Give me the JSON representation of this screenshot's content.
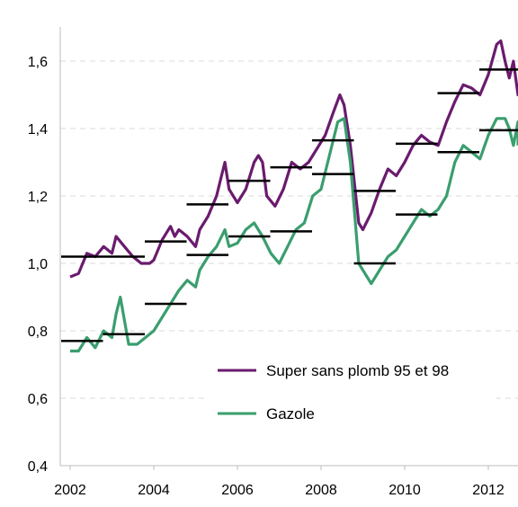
{
  "chart_data": {
    "type": "line",
    "title": "",
    "xlabel": "",
    "ylabel": "",
    "xlim": [
      2002,
      2013.1
    ],
    "ylim": [
      0.4,
      1.7
    ],
    "x_ticks": [
      2002,
      2004,
      2006,
      2008,
      2010,
      2012
    ],
    "x_tick_labels": [
      "2002",
      "2004",
      "2006",
      "2008",
      "2010",
      "2012"
    ],
    "y_ticks": [
      0.4,
      0.6,
      0.8,
      1.0,
      1.2,
      1.4,
      1.6
    ],
    "y_tick_labels": [
      "0,4",
      "0,6",
      "0,8",
      "1,0",
      "1,2",
      "1,4",
      "1,6"
    ],
    "grid": "horizontal dashed",
    "legend_position": "lower-right",
    "series": [
      {
        "name": "Super sans plomb 95 et 98",
        "color": "#6a1b6e",
        "x": [
          2002.0,
          2002.2,
          2002.4,
          2002.6,
          2002.8,
          2003.0,
          2003.1,
          2003.3,
          2003.5,
          2003.7,
          2003.9,
          2004.0,
          2004.2,
          2004.4,
          2004.5,
          2004.6,
          2004.8,
          2005.0,
          2005.1,
          2005.3,
          2005.5,
          2005.6,
          2005.7,
          2005.8,
          2006.0,
          2006.2,
          2006.4,
          2006.5,
          2006.6,
          2006.7,
          2006.9,
          2007.1,
          2007.3,
          2007.5,
          2007.7,
          2007.9,
          2008.1,
          2008.3,
          2008.45,
          2008.55,
          2008.7,
          2008.9,
          2009.0,
          2009.2,
          2009.4,
          2009.6,
          2009.8,
          2010.0,
          2010.2,
          2010.4,
          2010.6,
          2010.8,
          2011.0,
          2011.2,
          2011.4,
          2011.6,
          2011.8,
          2012.0,
          2012.2,
          2012.3,
          2012.4,
          2012.5,
          2012.6,
          2012.8,
          2013.0
        ],
        "y": [
          0.96,
          0.97,
          1.03,
          1.02,
          1.05,
          1.03,
          1.08,
          1.05,
          1.02,
          1.0,
          1.0,
          1.01,
          1.07,
          1.11,
          1.08,
          1.1,
          1.08,
          1.05,
          1.1,
          1.14,
          1.2,
          1.25,
          1.3,
          1.22,
          1.18,
          1.22,
          1.3,
          1.32,
          1.3,
          1.2,
          1.17,
          1.22,
          1.3,
          1.28,
          1.3,
          1.34,
          1.38,
          1.45,
          1.5,
          1.47,
          1.35,
          1.12,
          1.1,
          1.15,
          1.22,
          1.28,
          1.26,
          1.3,
          1.35,
          1.38,
          1.36,
          1.35,
          1.42,
          1.48,
          1.53,
          1.52,
          1.5,
          1.56,
          1.65,
          1.66,
          1.6,
          1.55,
          1.6,
          1.5,
          1.51
        ]
      },
      {
        "name": "Gazole",
        "color": "#3a9e6e",
        "x": [
          2002.0,
          2002.2,
          2002.4,
          2002.6,
          2002.8,
          2003.0,
          2003.1,
          2003.2,
          2003.4,
          2003.6,
          2003.8,
          2004.0,
          2004.2,
          2004.4,
          2004.6,
          2004.8,
          2005.0,
          2005.1,
          2005.3,
          2005.5,
          2005.7,
          2005.8,
          2006.0,
          2006.2,
          2006.4,
          2006.6,
          2006.8,
          2007.0,
          2007.2,
          2007.4,
          2007.6,
          2007.8,
          2008.0,
          2008.2,
          2008.4,
          2008.55,
          2008.7,
          2008.9,
          2009.0,
          2009.2,
          2009.4,
          2009.6,
          2009.8,
          2010.0,
          2010.2,
          2010.4,
          2010.6,
          2010.8,
          2011.0,
          2011.2,
          2011.4,
          2011.6,
          2011.8,
          2012.0,
          2012.2,
          2012.4,
          2012.5,
          2012.6,
          2012.8,
          2013.0
        ],
        "y": [
          0.74,
          0.74,
          0.78,
          0.75,
          0.8,
          0.78,
          0.85,
          0.9,
          0.76,
          0.76,
          0.78,
          0.8,
          0.84,
          0.88,
          0.92,
          0.95,
          0.93,
          0.98,
          1.02,
          1.05,
          1.1,
          1.05,
          1.06,
          1.1,
          1.12,
          1.08,
          1.03,
          1.0,
          1.05,
          1.1,
          1.12,
          1.2,
          1.22,
          1.32,
          1.42,
          1.43,
          1.3,
          1.0,
          0.98,
          0.94,
          0.98,
          1.02,
          1.04,
          1.08,
          1.12,
          1.16,
          1.14,
          1.16,
          1.2,
          1.3,
          1.35,
          1.33,
          1.31,
          1.38,
          1.43,
          1.43,
          1.4,
          1.35,
          1.42,
          1.35
        ]
      }
    ],
    "annual_averages": [
      {
        "series": "Super sans plomb 95 et 98",
        "years": [
          2002,
          2003,
          2004,
          2005,
          2006,
          2007,
          2008,
          2009,
          2010,
          2011,
          2012
        ],
        "values": [
          1.02,
          1.02,
          1.065,
          1.175,
          1.245,
          1.285,
          1.365,
          1.215,
          1.355,
          1.505,
          1.575
        ]
      },
      {
        "series": "Gazole",
        "years": [
          2002,
          2003,
          2004,
          2005,
          2006,
          2007,
          2008,
          2009,
          2010,
          2011,
          2012
        ],
        "values": [
          0.77,
          0.79,
          0.88,
          1.025,
          1.08,
          1.095,
          1.265,
          1.0,
          1.145,
          1.33,
          1.395
        ]
      }
    ]
  }
}
